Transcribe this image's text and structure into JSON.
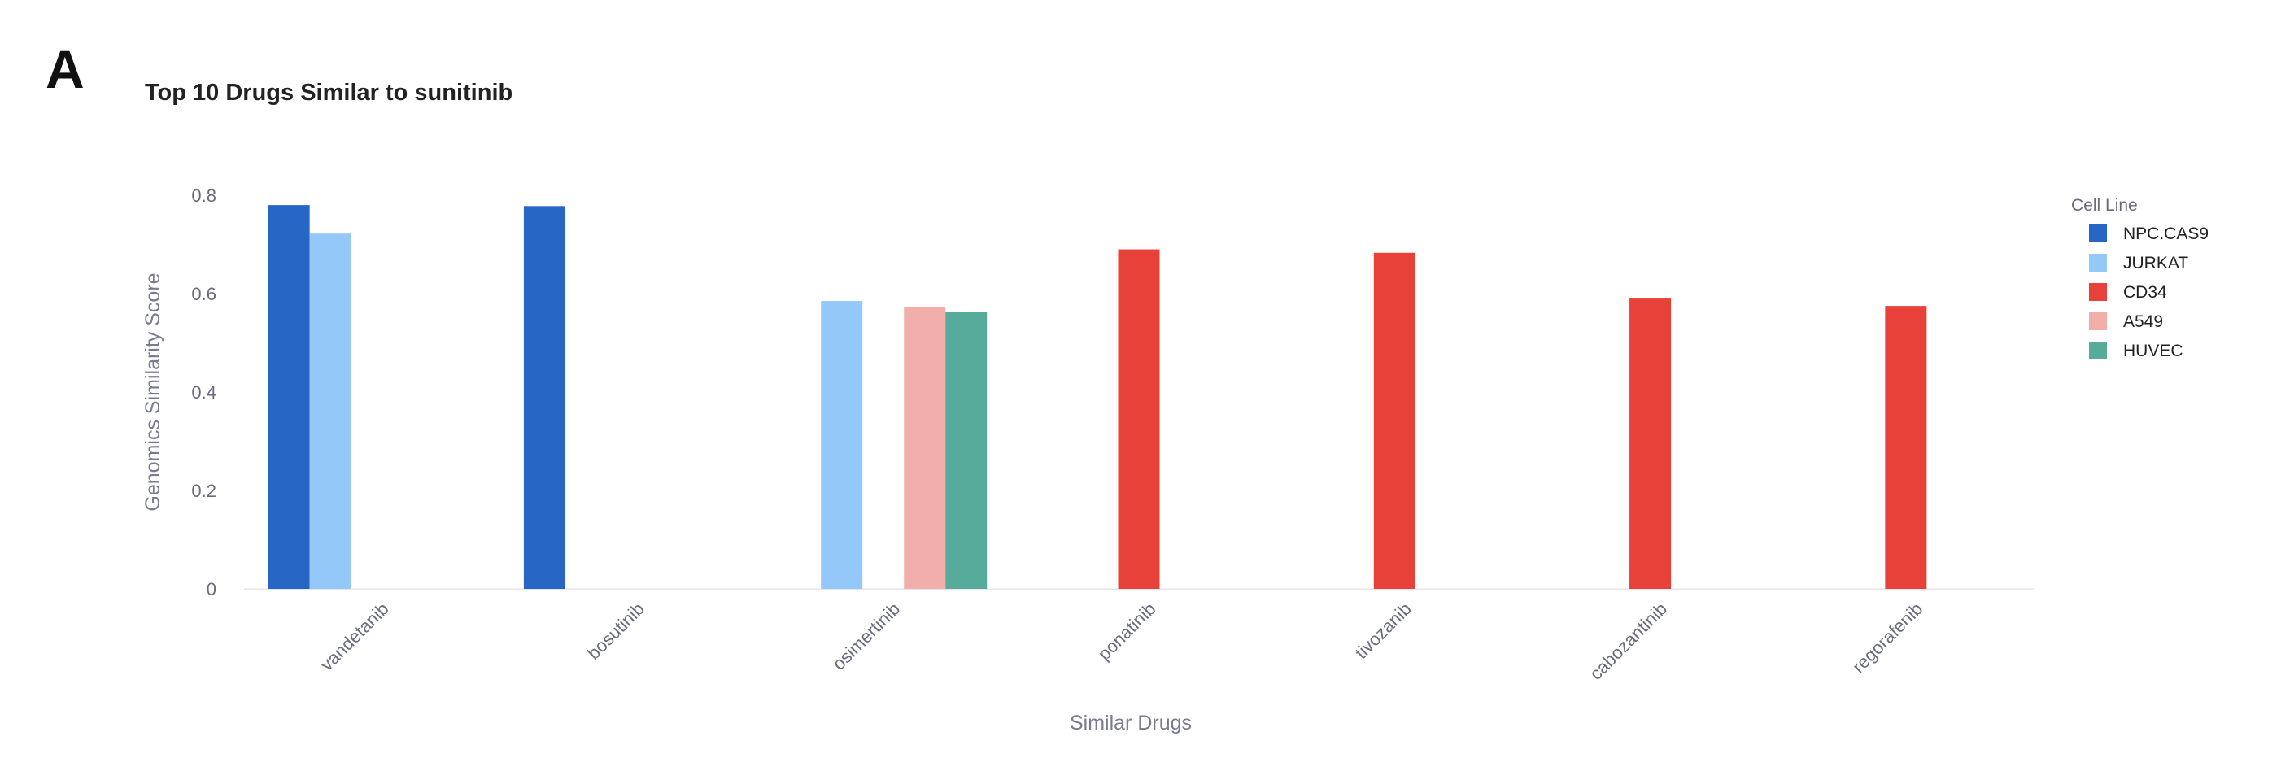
{
  "panel_label": "A",
  "chart_data": {
    "type": "bar",
    "title": "Top 10 Drugs Similar to sunitinib",
    "xlabel": "Similar Drugs",
    "ylabel": "Genomics Similarity Score",
    "ylim": [
      0,
      0.8
    ],
    "yticks": [
      0,
      0.2,
      0.4,
      0.6,
      0.8
    ],
    "grid": false,
    "legend_title": "Cell Line",
    "legend_position": "right",
    "categories": [
      "vandetanib",
      "bosutinib",
      "osimertinib",
      "ponatinib",
      "tivozanib",
      "cabozantinib",
      "regorafenib"
    ],
    "series": [
      {
        "name": "NPC.CAS9",
        "color": "#2866c5",
        "values": [
          0.78,
          0.778,
          null,
          null,
          null,
          null,
          null
        ]
      },
      {
        "name": "JURKAT",
        "color": "#94c8f8",
        "values": [
          0.722,
          null,
          0.585,
          null,
          null,
          null,
          null
        ]
      },
      {
        "name": "CD34",
        "color": "#e8413a",
        "values": [
          null,
          null,
          null,
          0.69,
          0.683,
          0.59,
          0.575
        ]
      },
      {
        "name": "A549",
        "color": "#f2aeaa",
        "values": [
          null,
          null,
          0.573,
          null,
          null,
          null,
          null
        ]
      },
      {
        "name": "HUVEC",
        "color": "#56ab9a",
        "values": [
          null,
          null,
          0.562,
          null,
          null,
          null,
          null
        ]
      }
    ]
  }
}
